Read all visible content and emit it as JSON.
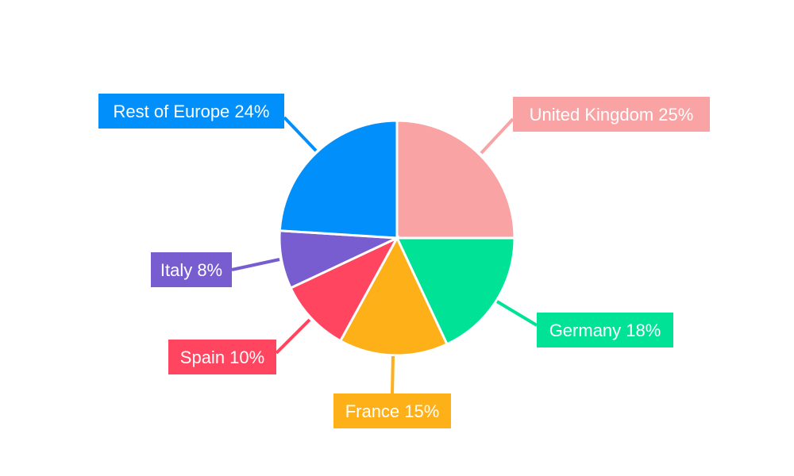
{
  "chart_data": {
    "type": "pie",
    "categories": [
      "United Kingdom",
      "Germany",
      "France",
      "Spain",
      "Italy",
      "Rest of Europe"
    ],
    "values": [
      25,
      18,
      15,
      10,
      8,
      24
    ],
    "unit": "%",
    "labels": [
      "United Kingdom 25%",
      "Germany 18%",
      "France 15%",
      "Spain 10%",
      "Italy 8%",
      "Rest of Europe 24%"
    ],
    "colors": [
      "#F9A3A4",
      "#00E396",
      "#FEB019",
      "#FF4560",
      "#775DD0",
      "#008FFB"
    ],
    "start_angle": "top, clockwise",
    "legend": "none"
  }
}
